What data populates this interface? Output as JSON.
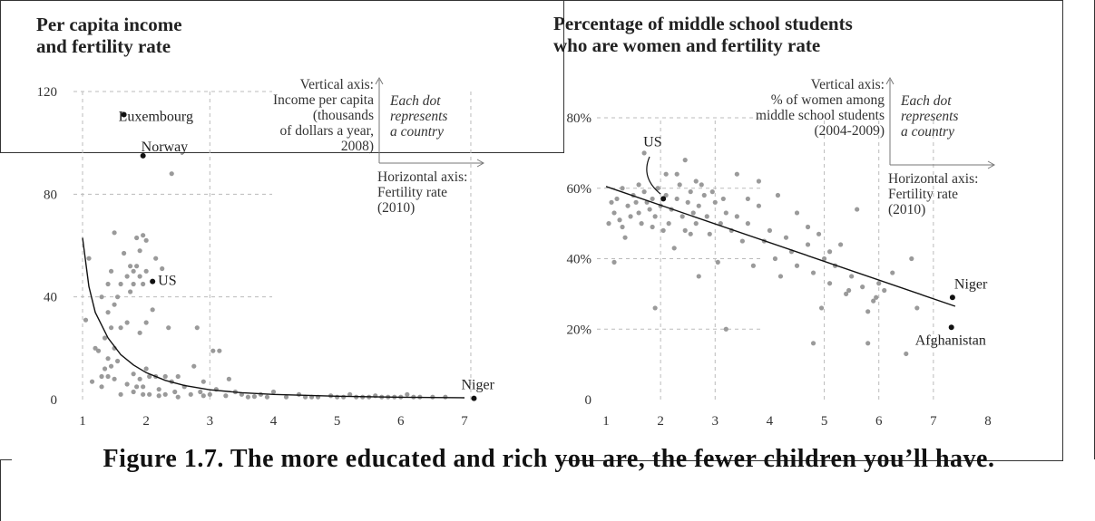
{
  "caption": "Figure 1.7. The more educated and rich you are, the fewer children you’ll have.",
  "colors": {
    "dots": "#9a9a9a",
    "highlight": "#111111",
    "grid": "#bbbbbb"
  },
  "chart_data": [
    {
      "type": "scatter",
      "title": [
        "Per capita income",
        "and fertility rate"
      ],
      "ylabel_lines": [
        "Vertical axis:",
        "Income per capita",
        "(thousands",
        "of dollars a year,",
        "2008)"
      ],
      "xlabel_lines": [
        "Horizontal axis:",
        "Fertility rate",
        "(2010)"
      ],
      "note_lines": [
        "Each dot",
        "represents",
        "a country"
      ],
      "xlim": [
        1,
        7.3
      ],
      "ylim": [
        0,
        120
      ],
      "x_ticks": [
        "1",
        "2",
        "3",
        "4",
        "5",
        "6",
        "7"
      ],
      "y_ticks": [
        "0",
        "40",
        "80",
        "120"
      ],
      "highlight": [
        {
          "label": "Luxembourg",
          "x": 1.65,
          "y": 111
        },
        {
          "label": "Norway",
          "x": 1.95,
          "y": 95
        },
        {
          "label": "US",
          "x": 2.1,
          "y": 46
        },
        {
          "label": "Niger",
          "x": 7.15,
          "y": 0.5
        }
      ],
      "points": [
        [
          1.05,
          31
        ],
        [
          1.2,
          20
        ],
        [
          1.25,
          19
        ],
        [
          1.3,
          40
        ],
        [
          1.3,
          9
        ],
        [
          1.3,
          5
        ],
        [
          1.35,
          12
        ],
        [
          1.35,
          24
        ],
        [
          1.4,
          45
        ],
        [
          1.4,
          34
        ],
        [
          1.4,
          16
        ],
        [
          1.4,
          9
        ],
        [
          1.45,
          50
        ],
        [
          1.45,
          28
        ],
        [
          1.45,
          13
        ],
        [
          1.5,
          37
        ],
        [
          1.5,
          20
        ],
        [
          1.5,
          8
        ],
        [
          1.5,
          65
        ],
        [
          1.55,
          40
        ],
        [
          1.55,
          15
        ],
        [
          1.6,
          45
        ],
        [
          1.6,
          28
        ],
        [
          1.65,
          57
        ],
        [
          1.7,
          48
        ],
        [
          1.7,
          30
        ],
        [
          1.7,
          6
        ],
        [
          1.75,
          52
        ],
        [
          1.75,
          42
        ],
        [
          1.8,
          50
        ],
        [
          1.8,
          45
        ],
        [
          1.8,
          10
        ],
        [
          1.8,
          3
        ],
        [
          1.85,
          63
        ],
        [
          1.85,
          52
        ],
        [
          1.85,
          5
        ],
        [
          1.9,
          58
        ],
        [
          1.9,
          48
        ],
        [
          1.9,
          26
        ],
        [
          1.9,
          8
        ],
        [
          1.95,
          64
        ],
        [
          1.95,
          45
        ],
        [
          1.95,
          5
        ],
        [
          1.95,
          2
        ],
        [
          2.0,
          62
        ],
        [
          2.0,
          50
        ],
        [
          2.0,
          30
        ],
        [
          2.0,
          12
        ],
        [
          2.05,
          9
        ],
        [
          2.05,
          2
        ],
        [
          2.1,
          35
        ],
        [
          2.15,
          55
        ],
        [
          2.15,
          9
        ],
        [
          2.2,
          4
        ],
        [
          2.25,
          51
        ],
        [
          2.3,
          9
        ],
        [
          2.3,
          2
        ],
        [
          2.35,
          28
        ],
        [
          2.4,
          88
        ],
        [
          2.4,
          7
        ],
        [
          2.45,
          3
        ],
        [
          2.5,
          9
        ],
        [
          2.6,
          5
        ],
        [
          2.7,
          2
        ],
        [
          2.75,
          13
        ],
        [
          2.8,
          28
        ],
        [
          2.85,
          3
        ],
        [
          2.9,
          7
        ],
        [
          3.0,
          2
        ],
        [
          3.05,
          19
        ],
        [
          3.1,
          4
        ],
        [
          3.15,
          19
        ],
        [
          3.25,
          1.5
        ],
        [
          3.3,
          8
        ],
        [
          3.4,
          3
        ],
        [
          3.5,
          2
        ],
        [
          3.6,
          1
        ],
        [
          3.8,
          2
        ],
        [
          3.9,
          1
        ],
        [
          4.0,
          3
        ],
        [
          4.2,
          1
        ],
        [
          4.4,
          2
        ],
        [
          4.5,
          1
        ],
        [
          4.7,
          1
        ],
        [
          4.9,
          1.5
        ],
        [
          5.0,
          1
        ],
        [
          5.1,
          1
        ],
        [
          5.2,
          2
        ],
        [
          5.3,
          1
        ],
        [
          5.4,
          1
        ],
        [
          5.5,
          1
        ],
        [
          5.6,
          1.5
        ],
        [
          5.8,
          1
        ],
        [
          5.9,
          1
        ],
        [
          6.0,
          1
        ],
        [
          6.1,
          2
        ],
        [
          6.3,
          1
        ],
        [
          6.5,
          1
        ],
        [
          6.7,
          1
        ],
        [
          1.1,
          55
        ],
        [
          1.15,
          7
        ],
        [
          1.6,
          2
        ],
        [
          2.2,
          1.5
        ],
        [
          2.5,
          1
        ],
        [
          2.9,
          1.5
        ],
        [
          3.7,
          1.2
        ],
        [
          4.6,
          1
        ],
        [
          5.7,
          1
        ],
        [
          6.2,
          1
        ]
      ],
      "fit": [
        [
          1.0,
          63
        ],
        [
          1.1,
          44
        ],
        [
          1.2,
          34
        ],
        [
          1.4,
          24
        ],
        [
          1.6,
          17.5
        ],
        [
          1.8,
          13.5
        ],
        [
          2.0,
          10.5
        ],
        [
          2.3,
          7.5
        ],
        [
          2.6,
          5.5
        ],
        [
          3.0,
          3.8
        ],
        [
          3.5,
          2.7
        ],
        [
          4.0,
          2.0
        ],
        [
          5.0,
          1.3
        ],
        [
          6.0,
          0.9
        ],
        [
          7.0,
          0.7
        ]
      ]
    },
    {
      "type": "scatter",
      "title": [
        "Percentage of middle school students",
        "who are women and fertility rate"
      ],
      "ylabel_lines": [
        "Vertical axis:",
        "% of women among",
        "middle school students",
        "(2004-2009)"
      ],
      "xlabel_lines": [
        "Horizontal axis:",
        "Fertility rate",
        "(2010)"
      ],
      "note_lines": [
        "Each dot",
        "represents",
        "a country"
      ],
      "xlim": [
        1,
        8
      ],
      "ylim": [
        0,
        80
      ],
      "x_ticks": [
        "1",
        "2",
        "3",
        "4",
        "5",
        "6",
        "7",
        "8"
      ],
      "y_ticks": [
        "0",
        "20%",
        "40%",
        "60%",
        "80%"
      ],
      "highlight": [
        {
          "label": "US",
          "x": 2.05,
          "y": 57
        },
        {
          "label": "Niger",
          "x": 7.35,
          "y": 29
        },
        {
          "label": "Afghanistan",
          "x": 7.33,
          "y": 20.5
        }
      ],
      "points": [
        [
          1.05,
          50
        ],
        [
          1.1,
          56
        ],
        [
          1.15,
          53
        ],
        [
          1.2,
          57
        ],
        [
          1.25,
          51
        ],
        [
          1.3,
          49
        ],
        [
          1.3,
          60
        ],
        [
          1.35,
          46
        ],
        [
          1.4,
          55
        ],
        [
          1.45,
          52
        ],
        [
          1.5,
          58
        ],
        [
          1.55,
          56
        ],
        [
          1.6,
          53
        ],
        [
          1.65,
          50
        ],
        [
          1.7,
          59
        ],
        [
          1.75,
          56
        ],
        [
          1.8,
          54
        ],
        [
          1.85,
          57
        ],
        [
          1.9,
          52
        ],
        [
          1.95,
          60
        ],
        [
          2.0,
          55
        ],
        [
          2.1,
          58
        ],
        [
          2.15,
          50
        ],
        [
          2.2,
          54
        ],
        [
          2.3,
          57
        ],
        [
          2.35,
          61
        ],
        [
          2.4,
          52
        ],
        [
          2.45,
          48
        ],
        [
          2.5,
          56
        ],
        [
          2.55,
          59
        ],
        [
          2.6,
          53
        ],
        [
          2.65,
          50
        ],
        [
          2.7,
          55
        ],
        [
          2.8,
          58
        ],
        [
          2.85,
          52
        ],
        [
          2.9,
          47
        ],
        [
          3.0,
          56
        ],
        [
          3.1,
          50
        ],
        [
          3.2,
          53
        ],
        [
          3.3,
          48
        ],
        [
          3.4,
          52
        ],
        [
          3.5,
          45
        ],
        [
          3.6,
          50
        ],
        [
          3.7,
          38
        ],
        [
          3.8,
          55
        ],
        [
          3.9,
          45
        ],
        [
          4.0,
          48
        ],
        [
          4.1,
          40
        ],
        [
          4.2,
          35
        ],
        [
          4.3,
          46
        ],
        [
          4.4,
          42
        ],
        [
          4.5,
          38
        ],
        [
          4.7,
          44
        ],
        [
          4.8,
          36
        ],
        [
          4.9,
          47
        ],
        [
          5.0,
          40
        ],
        [
          5.1,
          33
        ],
        [
          5.2,
          38
        ],
        [
          5.4,
          30
        ],
        [
          5.5,
          35
        ],
        [
          5.6,
          54
        ],
        [
          5.7,
          32
        ],
        [
          5.8,
          25
        ],
        [
          5.9,
          28
        ],
        [
          6.0,
          33
        ],
        [
          6.1,
          31
        ],
        [
          6.5,
          13
        ],
        [
          6.6,
          40
        ],
        [
          6.7,
          26
        ],
        [
          1.15,
          39
        ],
        [
          1.9,
          26
        ],
        [
          2.7,
          35
        ],
        [
          3.2,
          20
        ],
        [
          3.05,
          39
        ],
        [
          4.8,
          16
        ],
        [
          5.8,
          16
        ],
        [
          1.7,
          70
        ],
        [
          2.45,
          68
        ],
        [
          2.3,
          64
        ],
        [
          3.4,
          64
        ],
        [
          3.8,
          62
        ],
        [
          2.1,
          64
        ],
        [
          2.65,
          62
        ],
        [
          2.05,
          48
        ],
        [
          1.6,
          61
        ],
        [
          1.85,
          49
        ],
        [
          2.55,
          47
        ],
        [
          4.15,
          58
        ],
        [
          4.5,
          53
        ],
        [
          5.3,
          44
        ],
        [
          4.95,
          26
        ],
        [
          5.45,
          31
        ],
        [
          6.25,
          36
        ],
        [
          5.95,
          29
        ],
        [
          2.95,
          59
        ],
        [
          3.15,
          57
        ],
        [
          2.25,
          43
        ],
        [
          3.6,
          57
        ],
        [
          4.7,
          49
        ],
        [
          5.1,
          42
        ],
        [
          2.75,
          61
        ]
      ],
      "fit": [
        [
          1.0,
          60.5
        ],
        [
          7.4,
          26.5
        ]
      ]
    }
  ]
}
